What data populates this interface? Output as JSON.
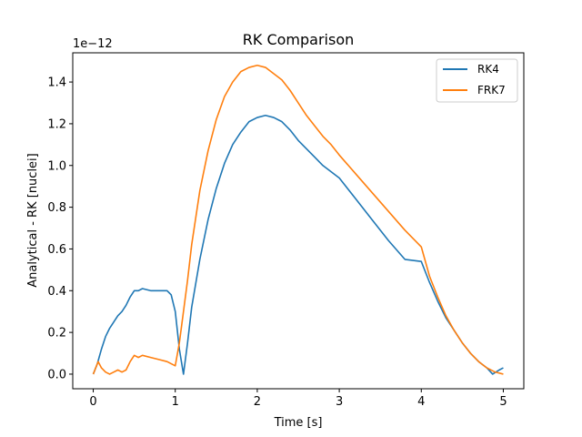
{
  "chart_data": {
    "type": "line",
    "title": "RK Comparison",
    "xlabel": "Time [s]",
    "ylabel": "Analytical - RK [nuclei]",
    "offset_text": "1e−12",
    "xlim": [
      -0.25,
      5.25
    ],
    "ylim": [
      -0.07,
      1.54
    ],
    "xticks": [
      0,
      1,
      2,
      3,
      4,
      5
    ],
    "yticks": [
      0.0,
      0.2,
      0.4,
      0.6,
      0.8,
      1.0,
      1.2,
      1.4
    ],
    "grid": false,
    "legend_position": "top-right",
    "series": [
      {
        "name": "RK4",
        "color": "#1f77b4",
        "x": [
          0.0,
          0.05,
          0.1,
          0.15,
          0.2,
          0.25,
          0.3,
          0.35,
          0.4,
          0.45,
          0.5,
          0.55,
          0.6,
          0.7,
          0.8,
          0.9,
          0.95,
          1.0,
          1.05,
          1.1,
          1.15,
          1.2,
          1.3,
          1.4,
          1.5,
          1.6,
          1.7,
          1.8,
          1.9,
          2.0,
          2.1,
          2.2,
          2.3,
          2.4,
          2.5,
          2.6,
          2.7,
          2.8,
          2.9,
          3.0,
          3.2,
          3.4,
          3.6,
          3.8,
          4.0,
          4.1,
          4.2,
          4.3,
          4.4,
          4.5,
          4.6,
          4.7,
          4.8,
          4.87,
          4.95,
          5.0
        ],
        "y": [
          0.0,
          0.05,
          0.12,
          0.18,
          0.22,
          0.25,
          0.28,
          0.3,
          0.33,
          0.37,
          0.4,
          0.4,
          0.41,
          0.4,
          0.4,
          0.4,
          0.38,
          0.3,
          0.12,
          0.0,
          0.15,
          0.32,
          0.55,
          0.74,
          0.89,
          1.01,
          1.1,
          1.16,
          1.21,
          1.23,
          1.24,
          1.23,
          1.21,
          1.17,
          1.12,
          1.08,
          1.04,
          1.0,
          0.97,
          0.94,
          0.84,
          0.74,
          0.64,
          0.55,
          0.54,
          0.44,
          0.35,
          0.27,
          0.21,
          0.15,
          0.1,
          0.06,
          0.03,
          0.0,
          0.02,
          0.03
        ]
      },
      {
        "name": "FRK7",
        "color": "#ff7f0e",
        "x": [
          0.0,
          0.03,
          0.06,
          0.1,
          0.15,
          0.2,
          0.25,
          0.3,
          0.35,
          0.4,
          0.45,
          0.5,
          0.55,
          0.6,
          0.7,
          0.8,
          0.9,
          1.0,
          1.05,
          1.1,
          1.15,
          1.2,
          1.3,
          1.4,
          1.5,
          1.6,
          1.7,
          1.8,
          1.9,
          2.0,
          2.1,
          2.2,
          2.3,
          2.4,
          2.5,
          2.6,
          2.7,
          2.8,
          2.9,
          3.0,
          3.2,
          3.4,
          3.6,
          3.8,
          4.0,
          4.1,
          4.2,
          4.3,
          4.4,
          4.5,
          4.6,
          4.7,
          4.8,
          4.9,
          5.0
        ],
        "y": [
          0.0,
          0.03,
          0.06,
          0.03,
          0.01,
          0.0,
          0.01,
          0.02,
          0.01,
          0.02,
          0.06,
          0.09,
          0.08,
          0.09,
          0.08,
          0.07,
          0.06,
          0.04,
          0.15,
          0.3,
          0.45,
          0.62,
          0.88,
          1.07,
          1.22,
          1.33,
          1.4,
          1.45,
          1.47,
          1.48,
          1.47,
          1.44,
          1.41,
          1.36,
          1.3,
          1.24,
          1.19,
          1.14,
          1.1,
          1.05,
          0.96,
          0.87,
          0.78,
          0.69,
          0.61,
          0.47,
          0.37,
          0.28,
          0.21,
          0.15,
          0.1,
          0.06,
          0.03,
          0.01,
          0.0
        ]
      }
    ]
  }
}
